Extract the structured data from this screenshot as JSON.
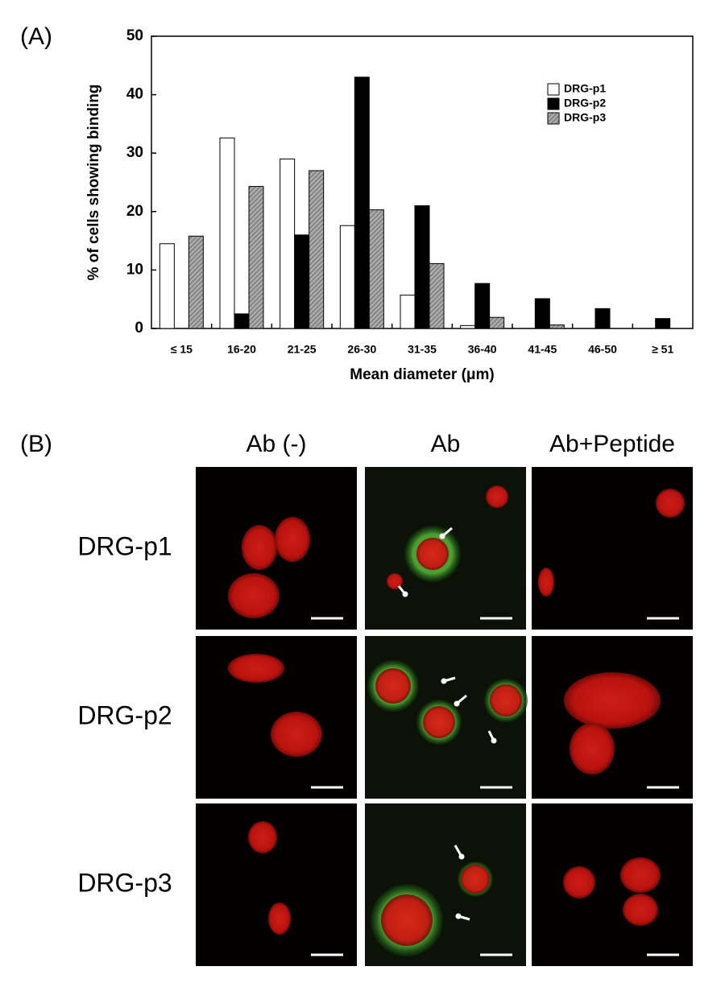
{
  "panel_a_label": "(A)",
  "chart_data": {
    "type": "bar",
    "x_label": "Mean diameter (μm)",
    "y_label": "% of cells showing binding",
    "categories": [
      "≤ 15",
      "16-20",
      "21-25",
      "26-30",
      "31-35",
      "36-40",
      "41-45",
      "46-50",
      "≥ 51"
    ],
    "series": [
      {
        "name": "DRG-p1",
        "color": "#ffffff",
        "values": [
          14.5,
          32.6,
          29,
          17.6,
          5.7,
          0.5,
          0,
          0,
          0
        ]
      },
      {
        "name": "DRG-p2",
        "color": "#000000",
        "values": [
          0,
          2.5,
          16,
          43,
          21,
          7.7,
          5.1,
          3.4,
          1.7
        ]
      },
      {
        "name": "DRG-p3",
        "color": "#aaaaaa",
        "values": [
          15.8,
          24.3,
          27,
          20.3,
          11.1,
          1.9,
          0.6,
          0,
          0
        ]
      }
    ],
    "ylim": [
      0,
      50
    ],
    "yticks": [
      0,
      10,
      20,
      30,
      40,
      50
    ],
    "grid": false,
    "legend": "upper right"
  },
  "panel_b": {
    "label": "(B)",
    "columns": [
      "Ab (-)",
      "Ab",
      "Ab+Peptide"
    ],
    "rows": [
      "DRG-p1",
      "DRG-p2",
      "DRG-p3"
    ]
  }
}
